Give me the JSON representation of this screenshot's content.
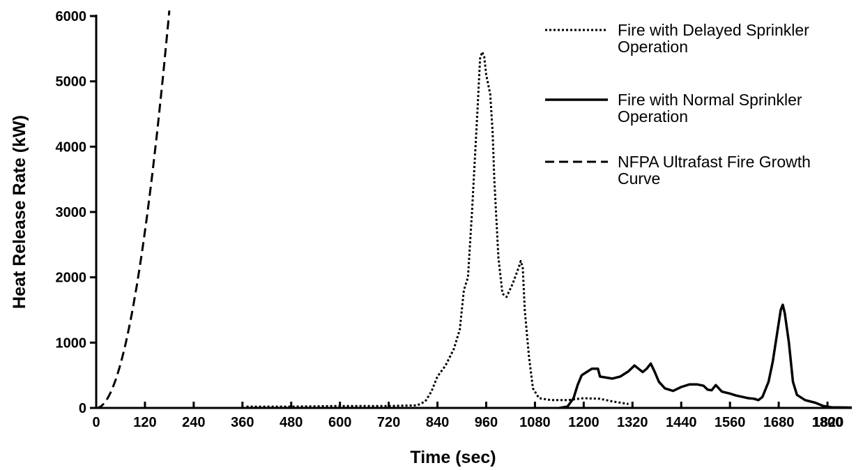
{
  "chart_data": {
    "type": "line",
    "xlabel": "Time (sec)",
    "ylabel": "Heat Release Rate (kW)",
    "xlim": [
      0,
      1860
    ],
    "ylim": [
      0,
      6000
    ],
    "x_ticks": [
      0,
      120,
      240,
      360,
      480,
      600,
      720,
      840,
      960,
      1080,
      1200,
      1320,
      1440,
      1560,
      1680,
      1800,
      1820
    ],
    "y_ticks": [
      0,
      1000,
      2000,
      3000,
      4000,
      5000,
      6000
    ],
    "grid": false,
    "legend_position": "top-right",
    "series": [
      {
        "name": "Fire with Delayed Sprinkler Operation",
        "style": "dotted",
        "color": "#000000",
        "points": [
          [
            370,
            20
          ],
          [
            480,
            20
          ],
          [
            600,
            30
          ],
          [
            720,
            30
          ],
          [
            790,
            40
          ],
          [
            810,
            100
          ],
          [
            825,
            250
          ],
          [
            840,
            480
          ],
          [
            860,
            650
          ],
          [
            880,
            900
          ],
          [
            895,
            1200
          ],
          [
            905,
            1800
          ],
          [
            915,
            2000
          ],
          [
            925,
            3000
          ],
          [
            938,
            4500
          ],
          [
            945,
            5350
          ],
          [
            950,
            5450
          ],
          [
            955,
            5380
          ],
          [
            960,
            5100
          ],
          [
            970,
            4800
          ],
          [
            976,
            4200
          ],
          [
            980,
            3500
          ],
          [
            990,
            2300
          ],
          [
            1000,
            1750
          ],
          [
            1010,
            1700
          ],
          [
            1025,
            1900
          ],
          [
            1040,
            2150
          ],
          [
            1045,
            2250
          ],
          [
            1050,
            2150
          ],
          [
            1055,
            1500
          ],
          [
            1065,
            800
          ],
          [
            1075,
            300
          ],
          [
            1090,
            150
          ],
          [
            1120,
            120
          ],
          [
            1160,
            120
          ],
          [
            1200,
            150
          ],
          [
            1240,
            140
          ],
          [
            1270,
            100
          ],
          [
            1300,
            70
          ],
          [
            1310,
            60
          ]
        ]
      },
      {
        "name": "Fire with Normal Sprinkler Operation",
        "style": "solid",
        "color": "#000000",
        "points": [
          [
            1140,
            0
          ],
          [
            1160,
            20
          ],
          [
            1175,
            150
          ],
          [
            1185,
            350
          ],
          [
            1195,
            500
          ],
          [
            1210,
            560
          ],
          [
            1220,
            600
          ],
          [
            1235,
            600
          ],
          [
            1240,
            480
          ],
          [
            1270,
            450
          ],
          [
            1290,
            480
          ],
          [
            1310,
            560
          ],
          [
            1325,
            650
          ],
          [
            1335,
            600
          ],
          [
            1345,
            550
          ],
          [
            1355,
            600
          ],
          [
            1365,
            680
          ],
          [
            1375,
            550
          ],
          [
            1385,
            400
          ],
          [
            1400,
            300
          ],
          [
            1420,
            260
          ],
          [
            1440,
            320
          ],
          [
            1460,
            360
          ],
          [
            1480,
            360
          ],
          [
            1495,
            340
          ],
          [
            1505,
            280
          ],
          [
            1515,
            270
          ],
          [
            1525,
            350
          ],
          [
            1540,
            250
          ],
          [
            1560,
            220
          ],
          [
            1575,
            190
          ],
          [
            1590,
            170
          ],
          [
            1605,
            150
          ],
          [
            1620,
            140
          ],
          [
            1630,
            120
          ],
          [
            1640,
            170
          ],
          [
            1655,
            400
          ],
          [
            1665,
            700
          ],
          [
            1675,
            1100
          ],
          [
            1685,
            1500
          ],
          [
            1690,
            1580
          ],
          [
            1695,
            1450
          ],
          [
            1705,
            1000
          ],
          [
            1715,
            400
          ],
          [
            1725,
            200
          ],
          [
            1745,
            120
          ],
          [
            1770,
            80
          ],
          [
            1790,
            30
          ],
          [
            1810,
            10
          ],
          [
            1860,
            5
          ]
        ]
      },
      {
        "name": "NFPA Ultrafast Fire Growth Curve",
        "style": "dashed",
        "color": "#000000",
        "alpha": 0.1878,
        "x_max": 180
      }
    ]
  }
}
